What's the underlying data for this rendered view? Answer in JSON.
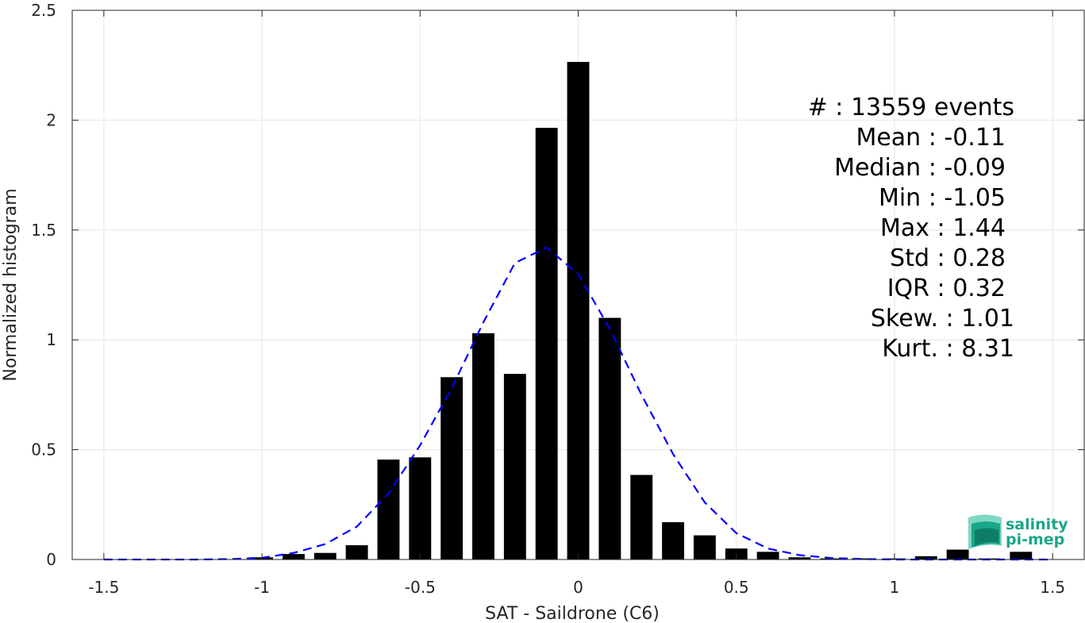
{
  "chart_data": {
    "type": "bar",
    "xlabel": "SAT - Saildrone (C6)",
    "ylabel": "Normalized histogram",
    "xlim": [
      -1.6,
      1.6
    ],
    "ylim": [
      0,
      2.5
    ],
    "xticks": [
      -1.5,
      -1,
      -0.5,
      0,
      0.5,
      1,
      1.5
    ],
    "xtick_labels": [
      "-1.5",
      "-1",
      "-0.5",
      "0",
      "0.5",
      "1",
      "1.5"
    ],
    "yticks": [
      0,
      0.5,
      1,
      1.5,
      2,
      2.5
    ],
    "ytick_labels": [
      "0",
      "0.5",
      "1",
      "1.5",
      "2",
      "2.5"
    ],
    "grid": true,
    "bar_width": 0.07,
    "bar_color": "#000000",
    "bars": [
      {
        "x": -1.5,
        "y": 0.0
      },
      {
        "x": -1.4,
        "y": 0.0
      },
      {
        "x": -1.3,
        "y": 0.0
      },
      {
        "x": -1.2,
        "y": 0.0
      },
      {
        "x": -1.1,
        "y": 0.0
      },
      {
        "x": -1.0,
        "y": 0.01
      },
      {
        "x": -0.9,
        "y": 0.025
      },
      {
        "x": -0.8,
        "y": 0.03
      },
      {
        "x": -0.7,
        "y": 0.065
      },
      {
        "x": -0.6,
        "y": 0.455
      },
      {
        "x": -0.5,
        "y": 0.465
      },
      {
        "x": -0.4,
        "y": 0.83
      },
      {
        "x": -0.3,
        "y": 1.03
      },
      {
        "x": -0.2,
        "y": 0.845
      },
      {
        "x": -0.1,
        "y": 1.965
      },
      {
        "x": 0.0,
        "y": 2.265
      },
      {
        "x": 0.1,
        "y": 1.1
      },
      {
        "x": 0.2,
        "y": 0.385
      },
      {
        "x": 0.3,
        "y": 0.17
      },
      {
        "x": 0.4,
        "y": 0.11
      },
      {
        "x": 0.5,
        "y": 0.05
      },
      {
        "x": 0.6,
        "y": 0.035
      },
      {
        "x": 0.7,
        "y": 0.01
      },
      {
        "x": 0.8,
        "y": 0.005
      },
      {
        "x": 0.9,
        "y": 0.005
      },
      {
        "x": 1.0,
        "y": 0.005
      },
      {
        "x": 1.1,
        "y": 0.015
      },
      {
        "x": 1.2,
        "y": 0.045
      },
      {
        "x": 1.3,
        "y": 0.005
      },
      {
        "x": 1.4,
        "y": 0.035
      },
      {
        "x": 1.5,
        "y": 0.0
      }
    ],
    "fit_curve": {
      "color": "#0000ff",
      "style": "dashed",
      "points": [
        [
          -1.5,
          0.0
        ],
        [
          -1.4,
          0.0
        ],
        [
          -1.3,
          0.0
        ],
        [
          -1.2,
          0.0
        ],
        [
          -1.1,
          0.002
        ],
        [
          -1.0,
          0.008
        ],
        [
          -0.9,
          0.03
        ],
        [
          -0.8,
          0.07
        ],
        [
          -0.7,
          0.15
        ],
        [
          -0.6,
          0.3
        ],
        [
          -0.5,
          0.52
        ],
        [
          -0.4,
          0.78
        ],
        [
          -0.3,
          1.08
        ],
        [
          -0.2,
          1.35
        ],
        [
          -0.1,
          1.42
        ],
        [
          0.0,
          1.3
        ],
        [
          0.1,
          1.05
        ],
        [
          0.2,
          0.75
        ],
        [
          0.3,
          0.48
        ],
        [
          0.4,
          0.26
        ],
        [
          0.5,
          0.12
        ],
        [
          0.6,
          0.05
        ],
        [
          0.7,
          0.02
        ],
        [
          0.8,
          0.007
        ],
        [
          0.9,
          0.002
        ],
        [
          1.0,
          0.0
        ],
        [
          1.1,
          0.0
        ],
        [
          1.2,
          0.0
        ],
        [
          1.3,
          0.0
        ],
        [
          1.4,
          0.0
        ],
        [
          1.5,
          0.0
        ]
      ]
    }
  },
  "stats": {
    "events": "#  : 13559 events",
    "mean": "Mean : -0.11",
    "median": "Median : -0.09",
    "min": "Min : -1.05",
    "max": "Max : 1.44",
    "std": "Std : 0.28",
    "iqr": "IQR : 0.32",
    "skew": "Skew. : 1.01",
    "kurt": "Kurt. : 8.31"
  },
  "logo": {
    "line1": "salinity",
    "line2": "pi-mep",
    "colors": [
      "#1aa68a",
      "#7fd8c4",
      "#0f7e69"
    ]
  }
}
